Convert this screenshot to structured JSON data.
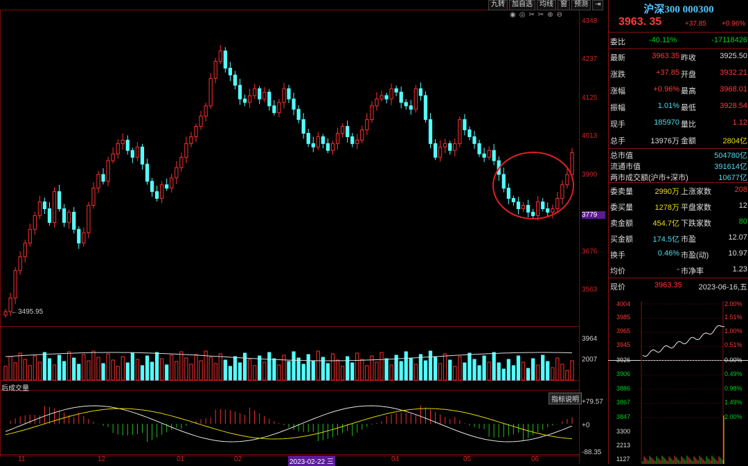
{
  "toolbar": {
    "buttons": [
      "九转",
      "加自选",
      "均线",
      "窗",
      "预测"
    ],
    "arrow_label": "⇥"
  },
  "chart": {
    "low_annotation": "←3495.95",
    "price_axis": [
      "4348",
      "4237",
      "4125",
      "4013",
      "3900",
      "3779",
      "3676",
      "3563"
    ],
    "volume_axis": [
      "3964",
      "2007"
    ],
    "indicator_axis": [
      "+79.57",
      "+0",
      "-88.35"
    ],
    "indicator_label": "后成交量",
    "indicator_button": "指标说明",
    "x_axis": [
      "11",
      "12",
      "01",
      "02",
      "2023-02-22 三",
      "04",
      "05",
      "06"
    ],
    "colors": {
      "up": "#ff3030",
      "down": "#54ffff",
      "highlight_circle": "#e02020"
    }
  },
  "chart_data": {
    "type": "candlestick",
    "ylim": [
      3480,
      4348
    ],
    "close": [
      3500,
      3540,
      3620,
      3660,
      3700,
      3740,
      3780,
      3820,
      3800,
      3760,
      3850,
      3800,
      3760,
      3790,
      3740,
      3700,
      3730,
      3810,
      3860,
      3900,
      3880,
      3940,
      3960,
      3990,
      4000,
      3970,
      3950,
      3980,
      3930,
      3880,
      3850,
      3830,
      3870,
      3860,
      3890,
      3920,
      3950,
      3990,
      4010,
      4040,
      4070,
      4100,
      4180,
      4230,
      4260,
      4210,
      4190,
      4160,
      4120,
      4110,
      4130,
      4150,
      4120,
      4140,
      4100,
      4080,
      4110,
      4150,
      4120,
      4090,
      4060,
      4020,
      3990,
      3980,
      4010,
      3990,
      3970,
      3990,
      4020,
      4040,
      4010,
      3990,
      4000,
      4030,
      4060,
      4100,
      4120,
      4130,
      4120,
      4150,
      4140,
      4110,
      4100,
      4090,
      4150,
      4130,
      4060,
      3990,
      3950,
      3980,
      3990,
      3970,
      3990,
      4060,
      4030,
      4010,
      3990,
      3960,
      3950,
      3970,
      3940,
      3900,
      3860,
      3830,
      3820,
      3800,
      3810,
      3790,
      3780,
      3820,
      3800,
      3790,
      3800,
      3830,
      3870,
      3900,
      3963.35
    ],
    "volume_label_values": [
      3964,
      2007
    ],
    "previous_close": 3925.5,
    "intraday_prices": [
      4004,
      3985,
      3965,
      3945,
      3926,
      3906,
      3886,
      3867,
      3847,
      3300,
      2213,
      1127
    ],
    "intraday_pcts": [
      "2.00%",
      "1.51%",
      "1.00%",
      "0.51%",
      "0.00%",
      "0.49%",
      "0.98%",
      "1.49%",
      "2.00%"
    ]
  },
  "panel": {
    "title": "沪深300 000300",
    "price": "3963. 35",
    "change": "+37.85",
    "pct": "+0.96%",
    "webi_label": "委比",
    "webi_val": "-40.11%",
    "webi_diff": "-17118426",
    "rows1": [
      {
        "l": "最新",
        "v": "3963.35",
        "l2": "昨收",
        "v2": "3925.50"
      },
      {
        "l": "涨跌",
        "v": "+37.85",
        "l2": "开盘",
        "v2": "3932.21"
      },
      {
        "l": "涨幅",
        "v": "+0.96%",
        "l2": "最高",
        "v2": "3968.01"
      },
      {
        "l": "振幅",
        "v": "1.01%",
        "l2": "最低",
        "v2": "3928.54"
      },
      {
        "l": "现手",
        "v": "185970",
        "l2": "量比",
        "v2": "1.12"
      },
      {
        "l": "总手",
        "v": "13976万",
        "l2": "金额",
        "v2": "2804亿"
      }
    ],
    "mkt": [
      {
        "l": "总市值",
        "v": "504780亿"
      },
      {
        "l": "流通市值",
        "v": "391614亿"
      },
      {
        "l": "两市成交额(沪市+深市)",
        "v": "10677亿"
      }
    ],
    "rows2": [
      {
        "l": "委卖量",
        "v": "2990万",
        "l2": "上涨家数",
        "v2": "208"
      },
      {
        "l": "委买量",
        "v": "1278万",
        "l2": "平盘家数",
        "v2": "12"
      },
      {
        "l": "卖金额",
        "v": "454.7亿",
        "l2": "下跌家数",
        "v2": "80"
      },
      {
        "l": "买金额",
        "v": "174.5亿",
        "l2": "市盈",
        "v2": "12.07"
      },
      {
        "l": "换手",
        "v": "0.46%",
        "l2": "市盈(动)",
        "v2": "10.97"
      },
      {
        "l": "均价",
        "v": "-",
        "l2": "市净率",
        "v2": "1.23"
      }
    ],
    "footer_label": "现价",
    "footer_price": "3963.35",
    "footer_date": "2023-06-16,五"
  }
}
